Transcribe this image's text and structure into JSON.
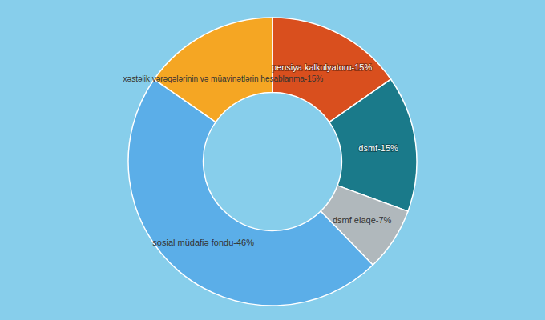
{
  "chart_data": {
    "type": "pie",
    "categories": [
      "pensiya kalkulyatoru-15%",
      "dsmf-15%",
      "dsmf elaqe-7%",
      "sosial müdafiə fondu-46%",
      "xəstəlik vərəqələrinin və müavinətlərin hesablanma-15%"
    ],
    "values": [
      15,
      15,
      7,
      46,
      15
    ],
    "colors": [
      "#d94f1e",
      "#1a7a8a",
      "#b0b8bc",
      "#5baee8",
      "#f5a623"
    ]
  }
}
